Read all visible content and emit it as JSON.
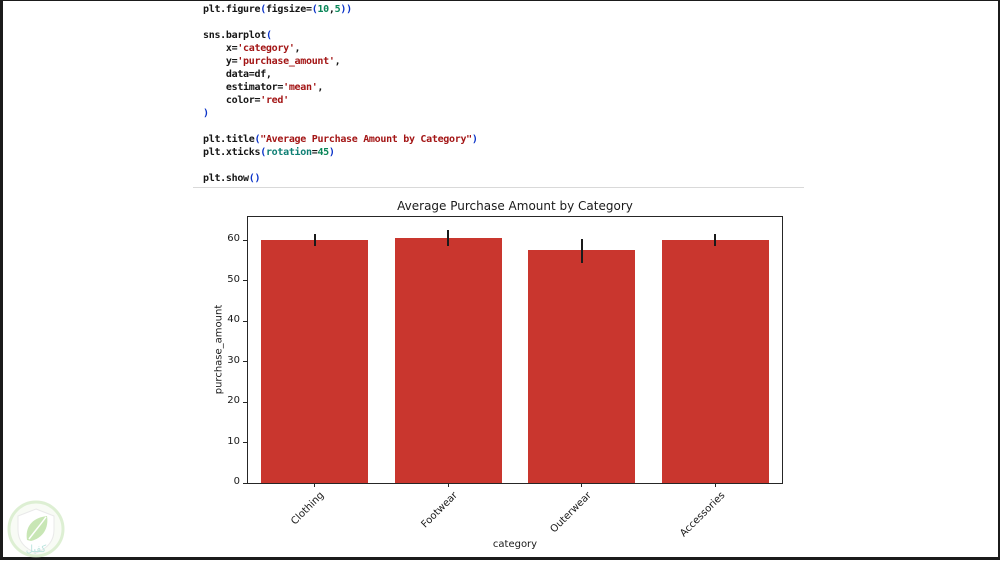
{
  "code": {
    "colors": {
      "plain": "#151515",
      "str": "#a31515",
      "num": "#098658",
      "paren": "#0b33c8",
      "kwarg": "#0e7f74"
    },
    "lines": [
      [
        [
          "plt.figure",
          "plain"
        ],
        [
          "(",
          "paren"
        ],
        [
          "figsize=",
          "plain"
        ],
        [
          "(",
          "paren"
        ],
        [
          "10",
          "num"
        ],
        [
          ",",
          "plain"
        ],
        [
          "5",
          "num"
        ],
        [
          ")",
          "paren"
        ],
        [
          ")",
          "paren"
        ]
      ],
      [],
      [
        [
          "sns.barplot",
          "plain"
        ],
        [
          "(",
          "paren"
        ]
      ],
      [
        [
          "    x=",
          "plain"
        ],
        [
          "'category'",
          "str"
        ],
        [
          ",",
          "plain"
        ]
      ],
      [
        [
          "    y=",
          "plain"
        ],
        [
          "'purchase_amount'",
          "str"
        ],
        [
          ",",
          "plain"
        ]
      ],
      [
        [
          "    data=df,",
          "plain"
        ]
      ],
      [
        [
          "    estimator=",
          "plain"
        ],
        [
          "'mean'",
          "str"
        ],
        [
          ",",
          "plain"
        ]
      ],
      [
        [
          "    color=",
          "plain"
        ],
        [
          "'red'",
          "str"
        ]
      ],
      [
        [
          ")",
          "paren"
        ]
      ],
      [],
      [
        [
          "plt.title",
          "plain"
        ],
        [
          "(",
          "paren"
        ],
        [
          "\"Average Purchase Amount by Category\"",
          "str"
        ],
        [
          ")",
          "paren"
        ]
      ],
      [
        [
          "plt.xticks",
          "plain"
        ],
        [
          "(",
          "paren"
        ],
        [
          "rotation",
          "kwarg"
        ],
        [
          "=",
          "plain"
        ],
        [
          "45",
          "num"
        ],
        [
          ")",
          "paren"
        ]
      ],
      [],
      [
        [
          "plt.show",
          "plain"
        ],
        [
          "(",
          "paren"
        ],
        [
          ")",
          "paren"
        ]
      ]
    ]
  },
  "chart_data": {
    "type": "bar",
    "title": "Average Purchase Amount by Category",
    "xlabel": "category",
    "ylabel": "purchase_amount",
    "categories": [
      "Clothing",
      "Footwear",
      "Outerwear",
      "Accessories"
    ],
    "values": [
      59.9,
      60.6,
      57.5,
      59.9
    ],
    "error_low": [
      58.6,
      58.5,
      54.3,
      58.6
    ],
    "error_high": [
      61.6,
      62.6,
      60.3,
      61.5
    ],
    "yticks": [
      0,
      10,
      20,
      30,
      40,
      50,
      60
    ],
    "ylim": [
      0,
      65.7
    ],
    "grid": false,
    "legend": "none",
    "bar_color": "#c9362e",
    "error_color": "#1a1a1a"
  },
  "watermark": {
    "text": "كفيل"
  }
}
